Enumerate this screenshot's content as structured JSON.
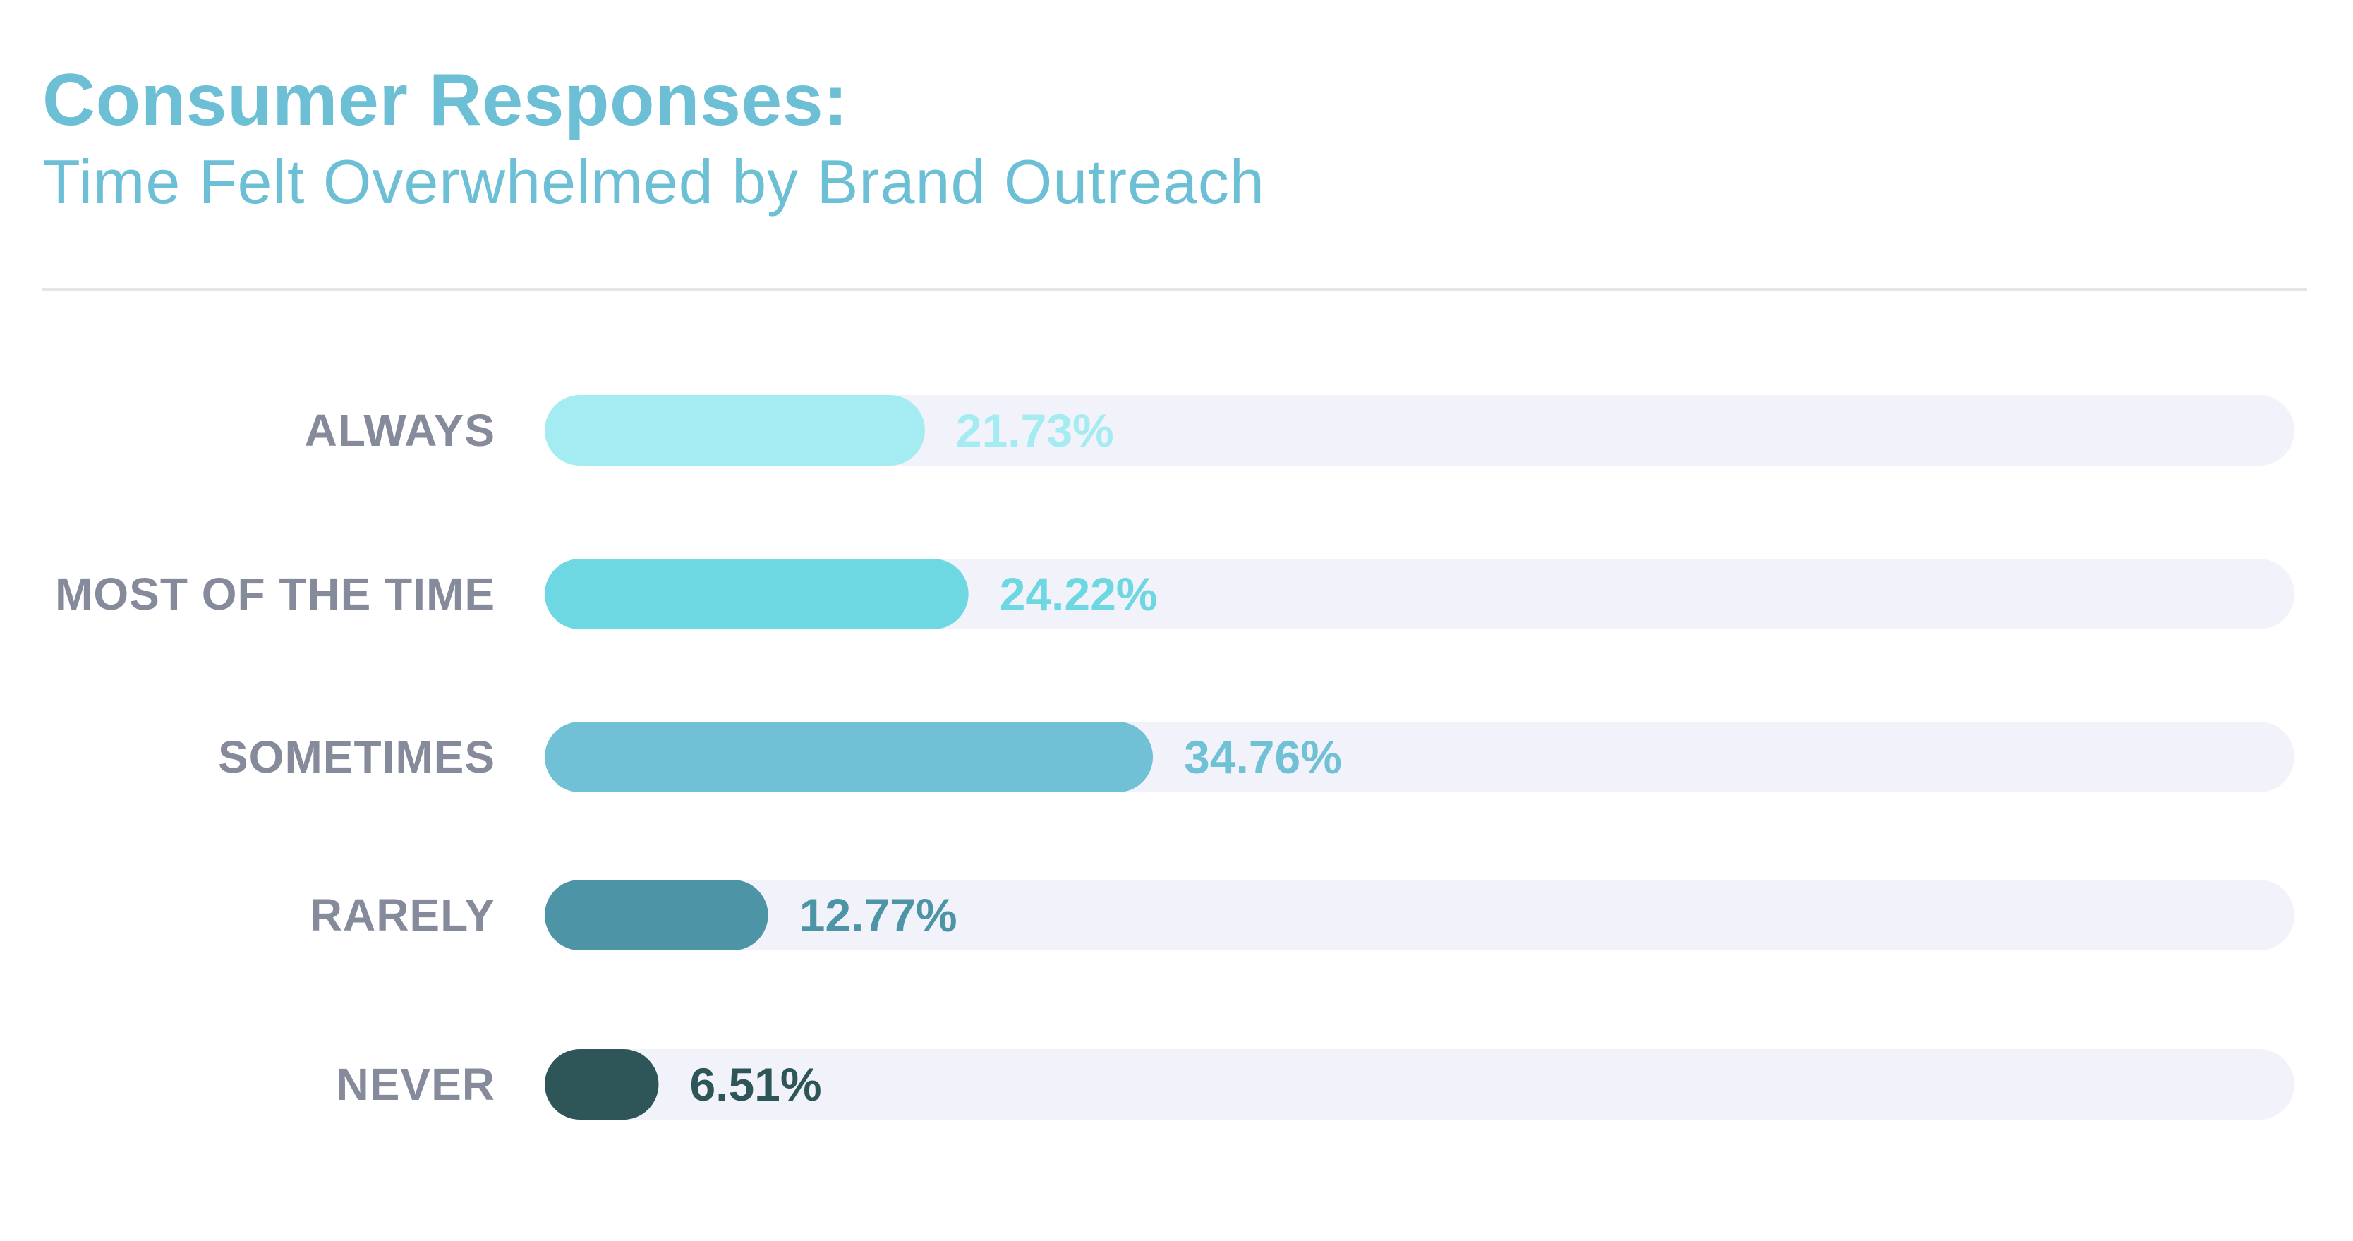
{
  "chart_data": {
    "type": "bar",
    "orientation": "horizontal",
    "title": "Consumer Responses:",
    "subtitle": "Time Felt Overwhelmed by Brand Outreach",
    "categories": [
      "ALWAYS",
      "MOST OF THE TIME",
      "SOMETIMES",
      "RARELY",
      "NEVER"
    ],
    "values": [
      21.73,
      24.22,
      34.76,
      12.77,
      6.51
    ],
    "value_labels": [
      "21.73%",
      "24.22%",
      "34.76%",
      "12.77%",
      "6.51%"
    ],
    "unit": "%",
    "xlim": [
      0,
      100
    ],
    "grid": false,
    "legend": "none",
    "colors": [
      "#a4ecf1",
      "#6dd7e2",
      "#70c0d6",
      "#4d94a6",
      "#2e5558"
    ],
    "track_color": "#f2f3fa"
  }
}
